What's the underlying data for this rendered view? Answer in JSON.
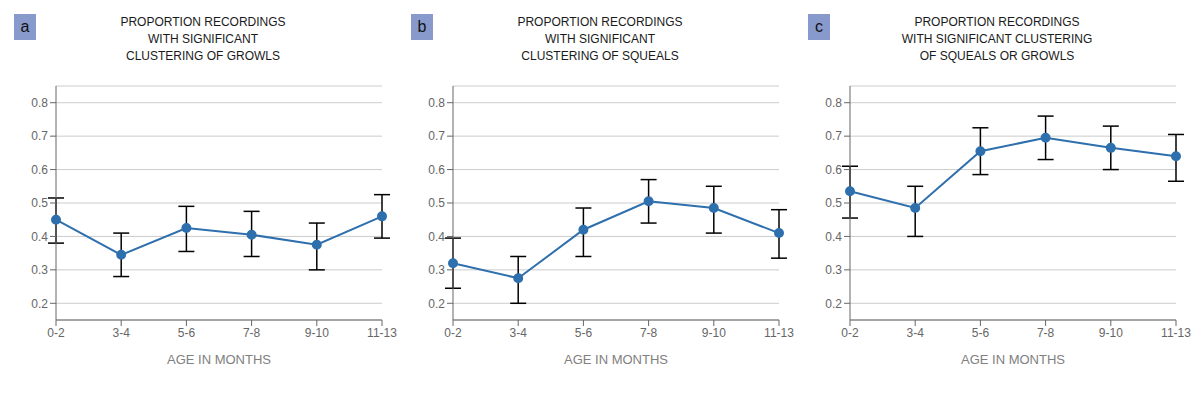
{
  "chart_data": [
    {
      "type": "line",
      "title": "PROPORTION RECORDINGS\nWITH SIGNIFICANT\nCLUSTERING OF GROWLS",
      "annotations": [
        "a"
      ],
      "x_label": "AGE IN MONTHS",
      "categories": [
        "0-2",
        "3-4",
        "5-6",
        "7-8",
        "9-10",
        "11-13"
      ],
      "values": [
        0.45,
        0.345,
        0.425,
        0.405,
        0.375,
        0.46
      ],
      "error_low": [
        0.07,
        0.065,
        0.07,
        0.065,
        0.075,
        0.065
      ],
      "error_high": [
        0.065,
        0.065,
        0.065,
        0.07,
        0.065,
        0.065
      ],
      "color": "#2e6fad",
      "marker": "circle",
      "ylim": [
        0.15,
        0.85
      ],
      "yticks": [
        0.2,
        0.3,
        0.4,
        0.5,
        0.6,
        0.7,
        0.8
      ],
      "grid": true
    },
    {
      "type": "line",
      "title": "PROPORTION RECORDINGS\nWITH SIGNIFICANT\nCLUSTERING OF SQUEALS",
      "annotations": [
        "b"
      ],
      "x_label": "AGE IN MONTHS",
      "categories": [
        "0-2",
        "3-4",
        "5-6",
        "7-8",
        "9-10",
        "11-13"
      ],
      "values": [
        0.32,
        0.275,
        0.42,
        0.505,
        0.485,
        0.41
      ],
      "error_low": [
        0.075,
        0.075,
        0.08,
        0.065,
        0.075,
        0.075
      ],
      "error_high": [
        0.075,
        0.065,
        0.065,
        0.065,
        0.065,
        0.07
      ],
      "color": "#2e6fad",
      "marker": "circle",
      "ylim": [
        0.15,
        0.85
      ],
      "yticks": [
        0.2,
        0.3,
        0.4,
        0.5,
        0.6,
        0.7,
        0.8
      ],
      "grid": true
    },
    {
      "type": "line",
      "title": "PROPORTION RECORDINGS\nWITH SIGNIFICANT CLUSTERING\nOF SQUEALS OR GROWLS",
      "annotations": [
        "c"
      ],
      "x_label": "AGE IN MONTHS",
      "categories": [
        "0-2",
        "3-4",
        "5-6",
        "7-8",
        "9-10",
        "11-13"
      ],
      "values": [
        0.535,
        0.485,
        0.655,
        0.695,
        0.665,
        0.64
      ],
      "error_low": [
        0.08,
        0.085,
        0.07,
        0.065,
        0.065,
        0.075
      ],
      "error_high": [
        0.075,
        0.065,
        0.07,
        0.065,
        0.065,
        0.065
      ],
      "color": "#2e6fad",
      "marker": "circle",
      "ylim": [
        0.15,
        0.85
      ],
      "yticks": [
        0.2,
        0.3,
        0.4,
        0.5,
        0.6,
        0.7,
        0.8
      ],
      "grid": true
    }
  ]
}
